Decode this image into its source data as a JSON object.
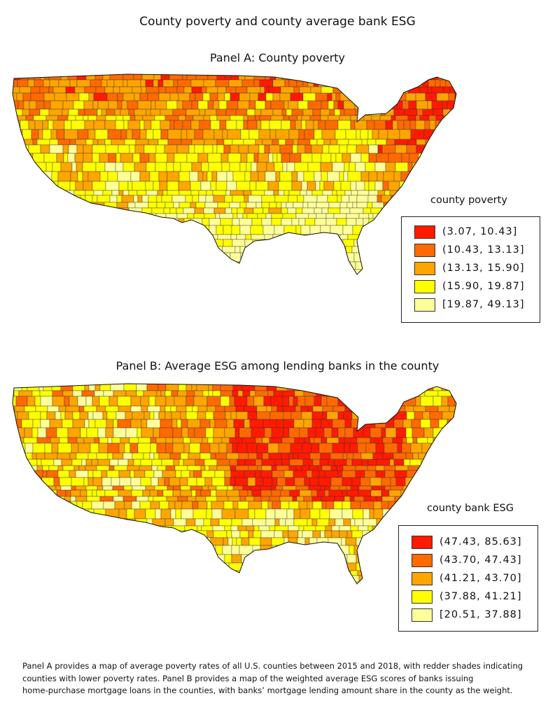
{
  "title": "County poverty and county average bank ESG",
  "panel_a": {
    "title": "Panel A: County poverty",
    "legend_title": "county poverty",
    "bins": [
      {
        "label": "(3.07, 10.43]",
        "color": "#ff1a00"
      },
      {
        "label": "(10.43, 13.13]",
        "color": "#ff6a00"
      },
      {
        "label": "(13.13, 15.90]",
        "color": "#ffa500"
      },
      {
        "label": "(15.90, 19.87]",
        "color": "#ffff00"
      },
      {
        "label": "[19.87, 49.13]",
        "color": "#ffff99"
      }
    ]
  },
  "panel_b": {
    "title": "Panel B: Average ESG among lending banks in the county",
    "legend_title": "county bank ESG",
    "bins": [
      {
        "label": "(47.43, 85.63]",
        "color": "#ff1a00"
      },
      {
        "label": "(43.70, 47.43]",
        "color": "#ff6a00"
      },
      {
        "label": "(41.21, 43.70]",
        "color": "#ffa500"
      },
      {
        "label": "(37.88, 41.21]",
        "color": "#ffff00"
      },
      {
        "label": "[20.51, 37.88]",
        "color": "#ffff99"
      }
    ]
  },
  "caption": {
    "line1": "Panel A provides a map of average poverty rates of all U.S. counties between 2015 and 2018, with redder shades indicating",
    "line2": "counties with lower poverty rates. Panel B provides a map of the weighted average ESG scores of banks issuing",
    "line3": "home-purchase mortgage loans in the counties, with banks’ mortgage lending amount share in the county as the weight."
  }
}
